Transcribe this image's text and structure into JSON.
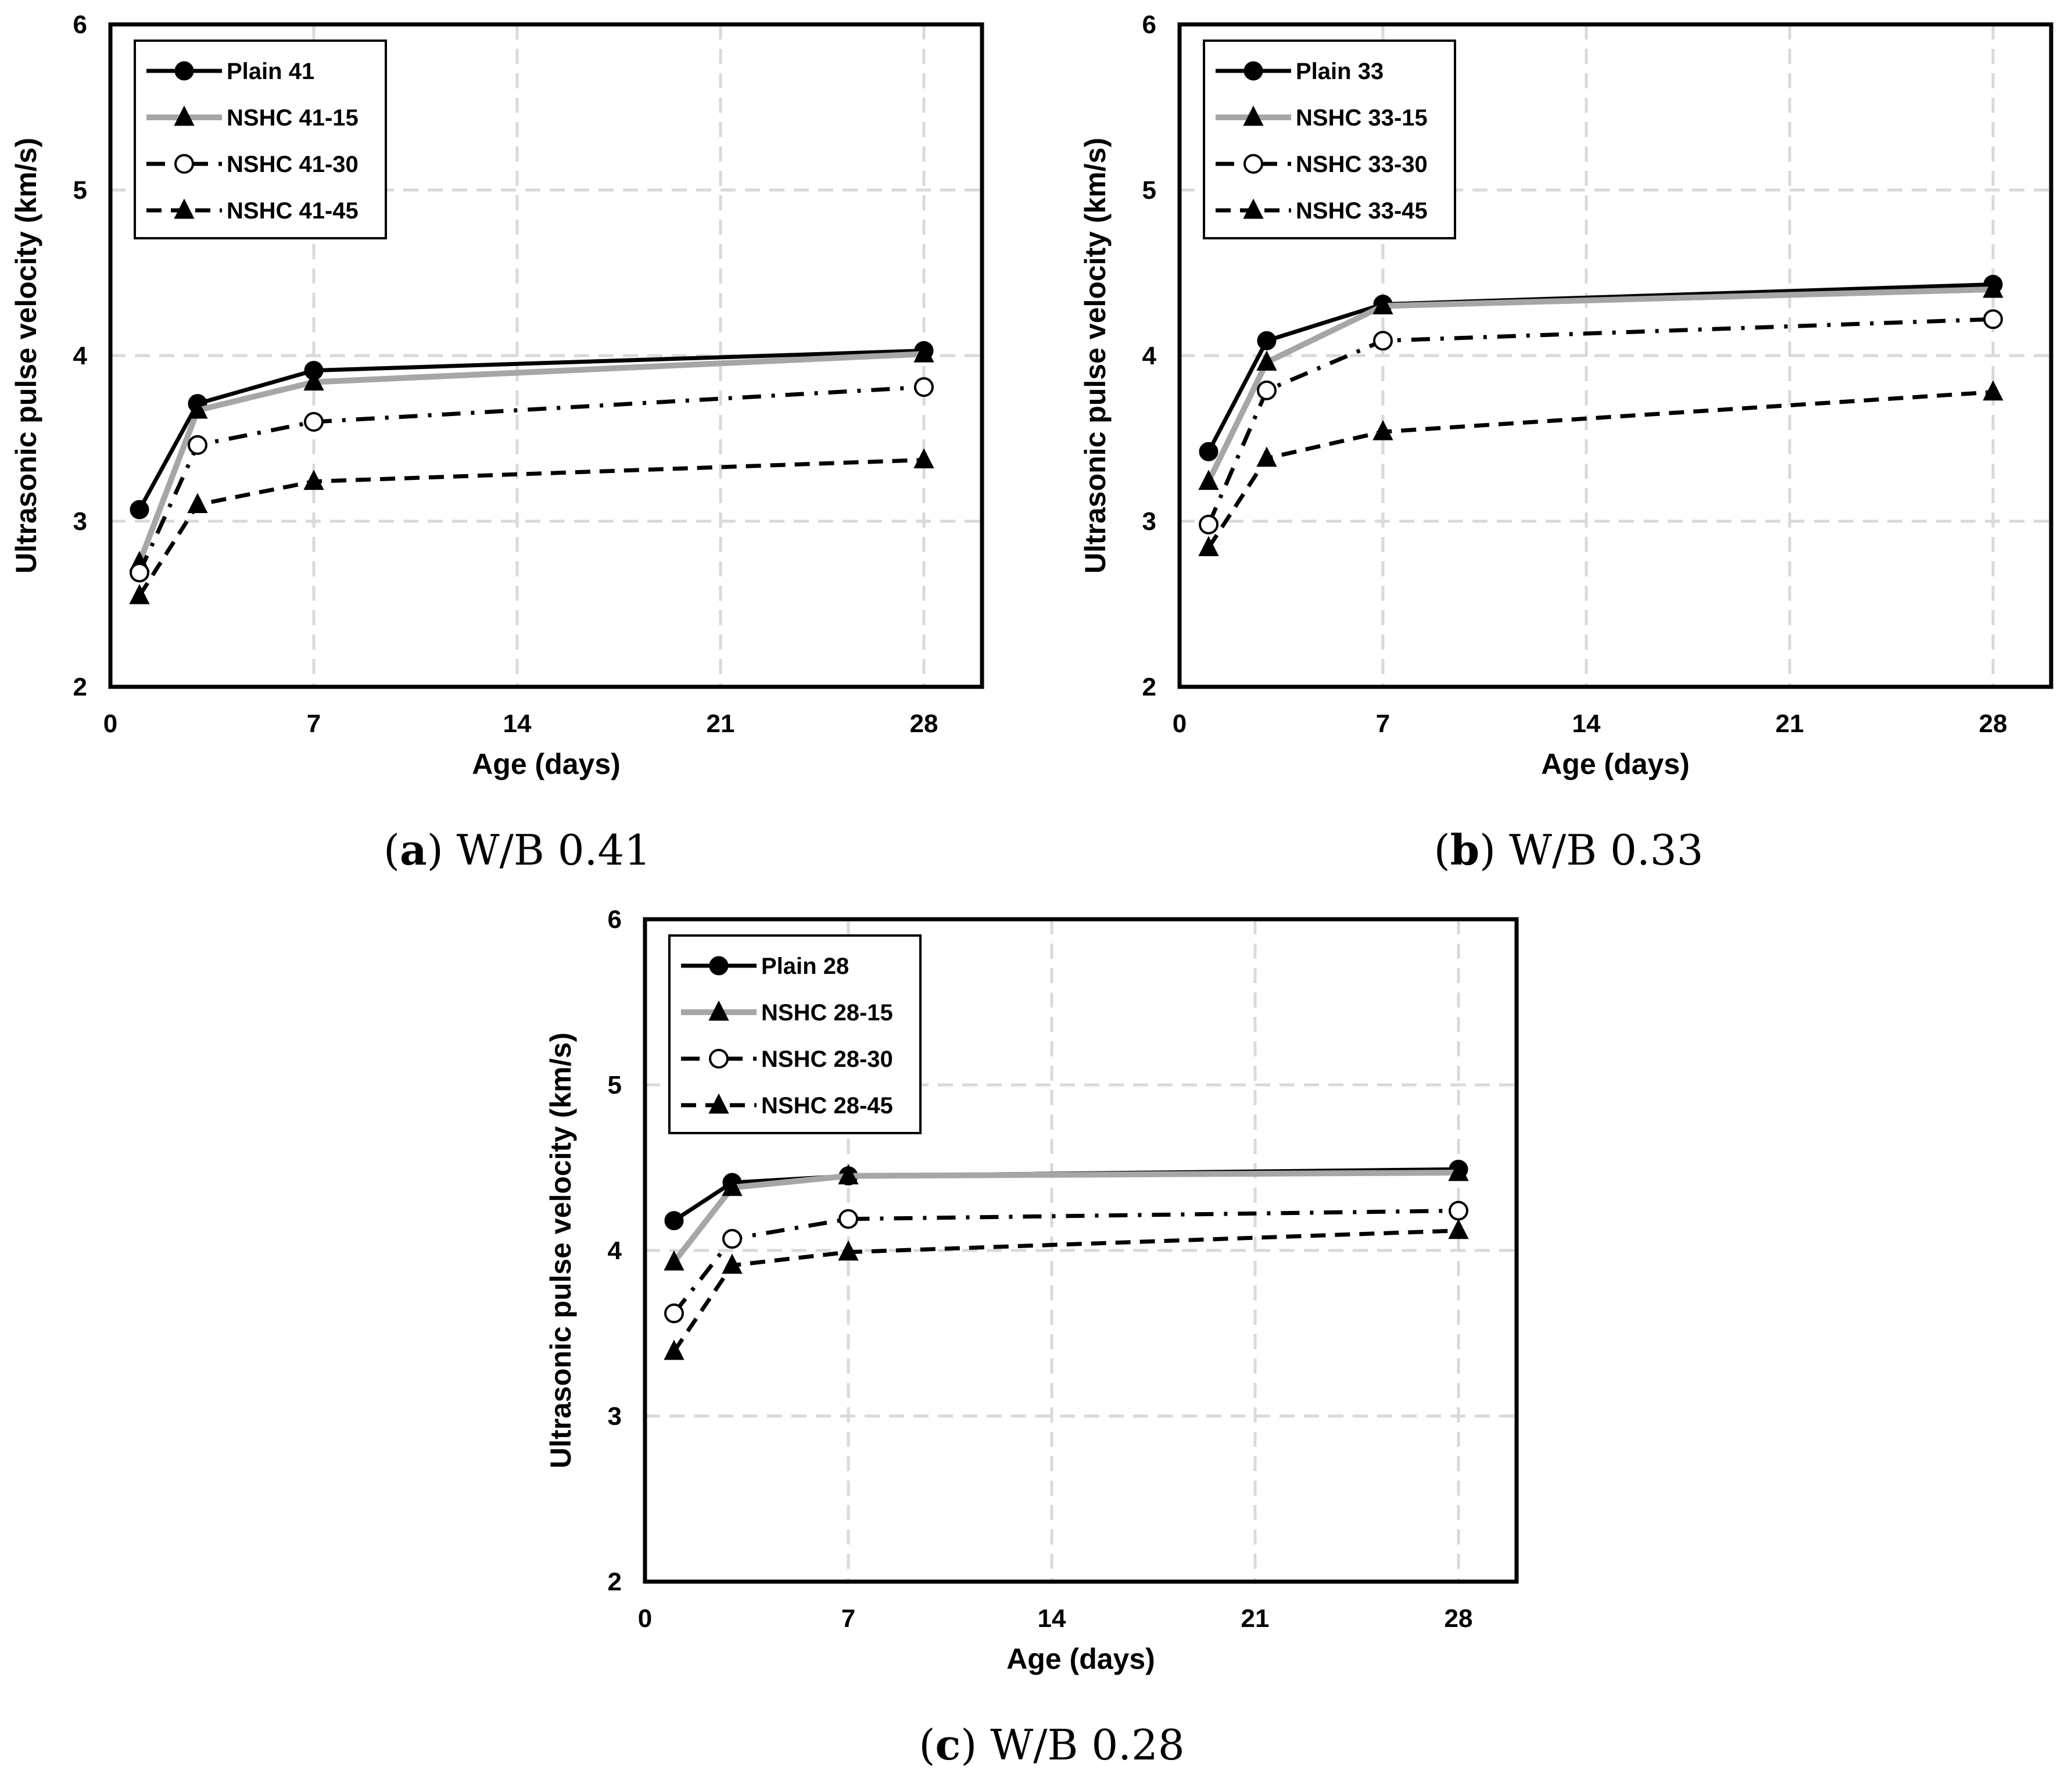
{
  "colors": {
    "black": "#000000",
    "gray": "#a6a6a6",
    "grid": "#d9d9d9",
    "white": "#ffffff"
  },
  "chart_data": [
    {
      "type": "line",
      "panel_id": "a",
      "caption_letter": "a",
      "caption_text": "W/B 0.41",
      "xlabel": "Age (days)",
      "ylabel": "Ultrasonic pulse velocity (km/s)",
      "xlim": [
        0,
        30
      ],
      "ylim": [
        2,
        6
      ],
      "xticks": [
        0,
        7,
        14,
        21,
        28
      ],
      "yticks": [
        2,
        3,
        4,
        5,
        6
      ],
      "grid": true,
      "legend_position": "top-left",
      "x": [
        1,
        3,
        7,
        28
      ],
      "series": [
        {
          "name": "Plain 41",
          "values": [
            3.07,
            3.71,
            3.91,
            4.03
          ],
          "style": "solid-black",
          "marker": "circle-filled"
        },
        {
          "name": "NSHC 41-15",
          "values": [
            2.75,
            3.67,
            3.84,
            4.01
          ],
          "style": "solid-gray",
          "marker": "triangle"
        },
        {
          "name": "NSHC 41-30",
          "values": [
            2.69,
            3.46,
            3.6,
            3.81
          ],
          "style": "dashdot-black",
          "marker": "circle-open"
        },
        {
          "name": "NSHC 41-45",
          "values": [
            2.55,
            3.1,
            3.24,
            3.37
          ],
          "style": "dashed-black",
          "marker": "triangle"
        }
      ]
    },
    {
      "type": "line",
      "panel_id": "b",
      "caption_letter": "b",
      "caption_text": "W/B 0.33",
      "xlabel": "Age (days)",
      "ylabel": "Ultrasonic pulse velocity (km/s)",
      "xlim": [
        0,
        30
      ],
      "ylim": [
        2,
        6
      ],
      "xticks": [
        0,
        7,
        14,
        21,
        28
      ],
      "yticks": [
        2,
        3,
        4,
        5,
        6
      ],
      "grid": true,
      "legend_position": "top-left",
      "x": [
        1,
        3,
        7,
        28
      ],
      "series": [
        {
          "name": "Plain 33",
          "values": [
            3.42,
            4.09,
            4.31,
            4.43
          ],
          "style": "solid-black",
          "marker": "circle-filled"
        },
        {
          "name": "NSHC 33-15",
          "values": [
            3.24,
            3.96,
            4.3,
            4.4
          ],
          "style": "solid-gray",
          "marker": "triangle"
        },
        {
          "name": "NSHC 33-30",
          "values": [
            2.98,
            3.79,
            4.09,
            4.22
          ],
          "style": "dashdot-black",
          "marker": "circle-open"
        },
        {
          "name": "NSHC 33-45",
          "values": [
            2.84,
            3.38,
            3.54,
            3.78
          ],
          "style": "dashed-black",
          "marker": "triangle"
        }
      ]
    },
    {
      "type": "line",
      "panel_id": "c",
      "caption_letter": "c",
      "caption_text": "W/B 0.28",
      "xlabel": "Age (days)",
      "ylabel": "Ultrasonic pulse velocity (km/s)",
      "xlim": [
        0,
        30
      ],
      "ylim": [
        2,
        6
      ],
      "xticks": [
        0,
        7,
        14,
        21,
        28
      ],
      "yticks": [
        2,
        3,
        4,
        5,
        6
      ],
      "grid": true,
      "legend_position": "top-left",
      "x": [
        1,
        3,
        7,
        28
      ],
      "series": [
        {
          "name": "Plain 28",
          "values": [
            4.18,
            4.41,
            4.45,
            4.49
          ],
          "style": "solid-black",
          "marker": "circle-filled"
        },
        {
          "name": "NSHC 28-15",
          "values": [
            3.93,
            4.38,
            4.45,
            4.47
          ],
          "style": "solid-gray",
          "marker": "triangle"
        },
        {
          "name": "NSHC 28-30",
          "values": [
            3.62,
            4.07,
            4.19,
            4.24
          ],
          "style": "dashdot-black",
          "marker": "circle-open"
        },
        {
          "name": "NSHC 28-45",
          "values": [
            3.39,
            3.91,
            3.99,
            4.12
          ],
          "style": "dashed-black",
          "marker": "triangle"
        }
      ]
    }
  ]
}
